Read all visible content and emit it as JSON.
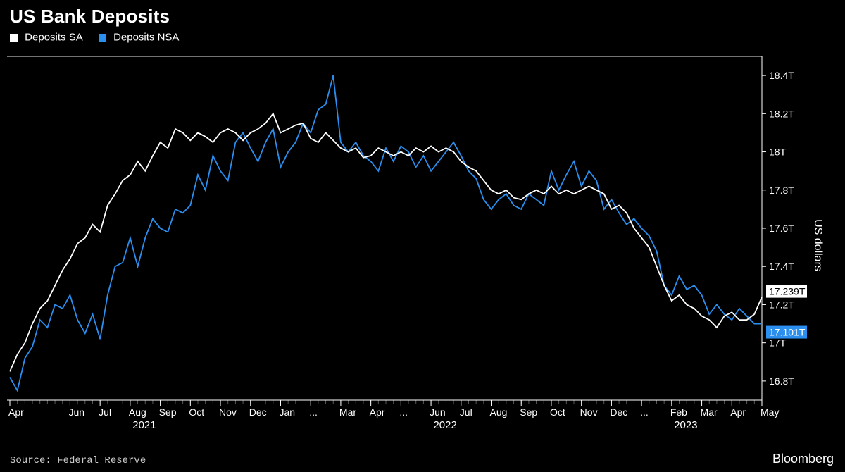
{
  "title": "US Bank Deposits",
  "legend": [
    {
      "label": "Deposits SA",
      "color": "#ffffff"
    },
    {
      "label": "Deposits NSA",
      "color": "#2b8fef"
    }
  ],
  "colors": {
    "background": "#000000",
    "axis": "#ffffff",
    "text": "#ffffff",
    "sa": "#ffffff",
    "nsa": "#2b8fef",
    "callout_sa_bg": "#ffffff",
    "callout_sa_text": "#000000",
    "callout_nsa_bg": "#2b8fef",
    "callout_nsa_text": "#ffffff"
  },
  "y_axis": {
    "label": "US dollars",
    "ticks": [
      16.8,
      17,
      17.2,
      17.4,
      17.6,
      17.8,
      18,
      18.2,
      18.4
    ],
    "tick_labels": [
      "16.8T",
      "17T",
      "17.2T",
      "17.4T",
      "17.6T",
      "17.8T",
      "18T",
      "18.2T",
      "18.4T"
    ],
    "min": 16.7,
    "max": 18.5
  },
  "x_axis": {
    "labels": [
      "Apr",
      "Jun",
      "Jul",
      "Aug",
      "Sep",
      "Oct",
      "Nov",
      "Dec",
      "Jan",
      "...",
      "Mar",
      "Apr",
      "...",
      "Jun",
      "Jul",
      "Aug",
      "Sep",
      "Oct",
      "Nov",
      "Dec",
      "...",
      "Feb",
      "Mar",
      "Apr",
      "May"
    ],
    "label_positions": [
      0,
      2,
      3,
      4,
      5,
      6,
      7,
      8,
      9,
      10,
      11,
      12,
      13,
      14,
      15,
      16,
      17,
      18,
      19,
      20,
      21,
      22,
      23,
      24,
      25
    ],
    "year_markers": [
      {
        "label": "2021",
        "center": 4.5
      },
      {
        "label": "2022",
        "center": 14.5
      },
      {
        "label": "2023",
        "center": 22.5
      }
    ],
    "n": 26
  },
  "series": {
    "sa": [
      16.85,
      16.94,
      17.0,
      17.1,
      17.18,
      17.22,
      17.3,
      17.38,
      17.44,
      17.52,
      17.55,
      17.62,
      17.58,
      17.72,
      17.78,
      17.85,
      17.88,
      17.95,
      17.9,
      17.98,
      18.05,
      18.02,
      18.12,
      18.1,
      18.06,
      18.1,
      18.08,
      18.05,
      18.1,
      18.12,
      18.1,
      18.06,
      18.1,
      18.12,
      18.15,
      18.2,
      18.1,
      18.12,
      18.14,
      18.15,
      18.07,
      18.05,
      18.1,
      18.06,
      18.02,
      18.0,
      18.02,
      17.97,
      17.98,
      18.02,
      18.0,
      17.98,
      18.0,
      17.98,
      18.02,
      18.0,
      18.03,
      18.0,
      18.02,
      18.0,
      17.95,
      17.92,
      17.9,
      17.85,
      17.8,
      17.78,
      17.8,
      17.76,
      17.75,
      17.78,
      17.8,
      17.78,
      17.82,
      17.78,
      17.8,
      17.78,
      17.8,
      17.82,
      17.8,
      17.78,
      17.7,
      17.72,
      17.68,
      17.6,
      17.55,
      17.5,
      17.4,
      17.3,
      17.22,
      17.25,
      17.2,
      17.18,
      17.14,
      17.12,
      17.08,
      17.14,
      17.16,
      17.12,
      17.12,
      17.15,
      17.24
    ],
    "nsa": [
      16.82,
      16.75,
      16.92,
      16.98,
      17.12,
      17.08,
      17.2,
      17.18,
      17.25,
      17.12,
      17.05,
      17.15,
      17.02,
      17.25,
      17.4,
      17.42,
      17.55,
      17.4,
      17.55,
      17.65,
      17.6,
      17.58,
      17.7,
      17.68,
      17.72,
      17.88,
      17.8,
      17.98,
      17.9,
      17.85,
      18.05,
      18.1,
      18.02,
      17.95,
      18.05,
      18.12,
      17.92,
      18.0,
      18.05,
      18.15,
      18.1,
      18.22,
      18.25,
      18.4,
      18.05,
      18.0,
      18.05,
      17.98,
      17.95,
      17.9,
      18.02,
      17.95,
      18.03,
      18.0,
      17.92,
      17.98,
      17.9,
      17.95,
      18.0,
      18.05,
      17.98,
      17.9,
      17.86,
      17.75,
      17.7,
      17.75,
      17.78,
      17.72,
      17.7,
      17.78,
      17.75,
      17.72,
      17.9,
      17.8,
      17.88,
      17.95,
      17.82,
      17.9,
      17.85,
      17.7,
      17.75,
      17.68,
      17.62,
      17.65,
      17.6,
      17.56,
      17.48,
      17.3,
      17.25,
      17.35,
      17.28,
      17.3,
      17.25,
      17.15,
      17.2,
      17.15,
      17.12,
      17.18,
      17.14,
      17.1,
      17.1
    ]
  },
  "callouts": {
    "sa": {
      "value": "17.239T"
    },
    "nsa": {
      "value": "17.101T"
    }
  },
  "style": {
    "line_width": 1.8,
    "title_fontsize": 26,
    "axis_fontsize": 14
  },
  "source": "Source: Federal Reserve",
  "brand": "Bloomberg"
}
